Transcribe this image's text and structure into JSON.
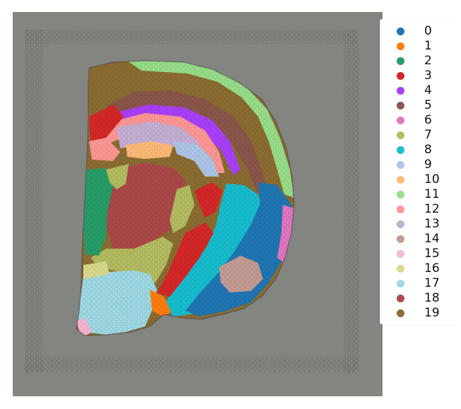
{
  "figure": {
    "type": "spatial-transcriptomics-cluster-overlay",
    "background_color": "#838580",
    "legend": {
      "placement": "right",
      "clusters": [
        {
          "label": "0",
          "color": "#1f77b4"
        },
        {
          "label": "1",
          "color": "#ff7f0e"
        },
        {
          "label": "2",
          "color": "#279e68"
        },
        {
          "label": "3",
          "color": "#d62728"
        },
        {
          "label": "4",
          "color": "#aa40fc"
        },
        {
          "label": "5",
          "color": "#8c564b"
        },
        {
          "label": "6",
          "color": "#e377c2"
        },
        {
          "label": "7",
          "color": "#b5bd61"
        },
        {
          "label": "8",
          "color": "#17becf"
        },
        {
          "label": "9",
          "color": "#aec7e8"
        },
        {
          "label": "10",
          "color": "#ffbb78"
        },
        {
          "label": "11",
          "color": "#98df8a"
        },
        {
          "label": "12",
          "color": "#ff9896"
        },
        {
          "label": "13",
          "color": "#c5b0d5"
        },
        {
          "label": "14",
          "color": "#c49c94"
        },
        {
          "label": "15",
          "color": "#f7b6d2"
        },
        {
          "label": "16",
          "color": "#dbdb8d"
        },
        {
          "label": "17",
          "color": "#9edae5"
        },
        {
          "label": "18",
          "color": "#ad494a"
        },
        {
          "label": "19",
          "color": "#8c6d31"
        }
      ]
    }
  }
}
